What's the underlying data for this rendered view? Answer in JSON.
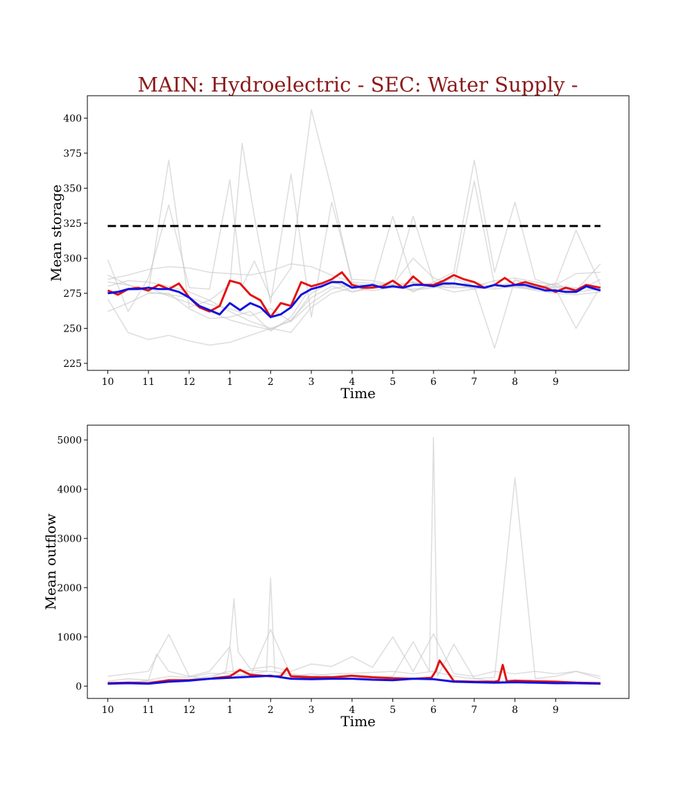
{
  "figure": {
    "title": "MAIN: Hydroelectric - SEC: Water Supply -",
    "colors": {
      "title": "#8b1a1a",
      "red": "#e41010",
      "blue": "#1010e0",
      "grey": "#c8c8c8",
      "threshold": "#000000"
    }
  },
  "chart_data": [
    {
      "type": "line",
      "title": "",
      "xlabel": "Time",
      "ylabel": "Mean storage",
      "xlim": [
        -0.5,
        12.8
      ],
      "ylim": [
        220,
        416
      ],
      "x_tick_values": [
        0,
        1,
        2,
        3,
        4,
        5,
        6,
        7,
        8,
        9,
        10,
        11
      ],
      "x_tick_labels": [
        "10",
        "11",
        "12",
        "1",
        "2",
        "3",
        "4",
        "5",
        "6",
        "7",
        "8",
        "9"
      ],
      "y_ticks": [
        225,
        250,
        275,
        300,
        325,
        350,
        375,
        400
      ],
      "grid": false,
      "threshold": {
        "value": 323,
        "style": "dashed",
        "color": "#000000"
      },
      "series": [
        {
          "color": "#e41010",
          "x": [
            0.0,
            0.25,
            0.5,
            0.75,
            1.0,
            1.25,
            1.5,
            1.75,
            2.0,
            2.25,
            2.5,
            2.75,
            3.0,
            3.25,
            3.5,
            3.75,
            4.0,
            4.25,
            4.5,
            4.75,
            5.0,
            5.25,
            5.5,
            5.75,
            6.0,
            6.25,
            6.5,
            6.75,
            7.0,
            7.25,
            7.5,
            7.75,
            8.0,
            8.25,
            8.5,
            8.75,
            9.0,
            9.25,
            9.5,
            9.75,
            10.0,
            10.25,
            10.5,
            10.75,
            11.0,
            11.25,
            11.5,
            11.75,
            12.1
          ],
          "values": [
            277,
            274,
            278,
            279,
            277,
            281,
            278,
            282,
            272,
            265,
            262,
            266,
            284,
            282,
            274,
            270,
            258,
            268,
            266,
            283,
            280,
            282,
            285,
            290,
            281,
            279,
            279,
            280,
            284,
            279,
            287,
            281,
            281,
            284,
            288,
            285,
            283,
            279,
            281,
            286,
            281,
            283,
            281,
            279,
            276,
            279,
            277,
            281,
            279
          ]
        },
        {
          "color": "#1010e0",
          "x": [
            0.0,
            0.25,
            0.5,
            0.75,
            1.0,
            1.25,
            1.5,
            1.75,
            2.0,
            2.25,
            2.5,
            2.75,
            3.0,
            3.25,
            3.5,
            3.75,
            4.0,
            4.25,
            4.5,
            4.75,
            5.0,
            5.25,
            5.5,
            5.75,
            6.0,
            6.25,
            6.5,
            6.75,
            7.0,
            7.25,
            7.5,
            7.75,
            8.0,
            8.25,
            8.5,
            8.75,
            9.0,
            9.25,
            9.5,
            9.75,
            10.0,
            10.25,
            10.5,
            10.75,
            11.0,
            11.25,
            11.5,
            11.75,
            12.1
          ],
          "values": [
            275,
            276,
            278,
            278,
            279,
            278,
            278,
            276,
            272,
            266,
            263,
            260,
            268,
            263,
            268,
            265,
            258,
            260,
            265,
            274,
            278,
            280,
            283,
            283,
            279,
            280,
            281,
            279,
            280,
            279,
            281,
            281,
            280,
            282,
            282,
            281,
            280,
            279,
            281,
            280,
            281,
            281,
            279,
            277,
            277,
            276,
            276,
            280,
            277
          ]
        },
        {
          "color": "#c8c8c8",
          "x": [
            0,
            0.5,
            1,
            1.5,
            2,
            2.5,
            3,
            3.3,
            3.6,
            4,
            4.5,
            5,
            5.5,
            6,
            6.5,
            7,
            7.5,
            8,
            8.5,
            9,
            9.5,
            10,
            10.5,
            11,
            11.5,
            12.1
          ],
          "values": [
            299,
            262,
            286,
            338,
            279,
            278,
            356,
            280,
            298,
            272,
            293,
            406,
            349,
            282,
            280,
            280,
            330,
            283,
            290,
            370,
            290,
            340,
            285,
            280,
            277,
            296
          ]
        },
        {
          "color": "#c8c8c8",
          "x": [
            0,
            0.5,
            1,
            1.5,
            2,
            2.5,
            3,
            3.3,
            3.6,
            4,
            4.5,
            5,
            5.5,
            6,
            6.5,
            7,
            7.5,
            8,
            8.5,
            9,
            9.5,
            10,
            10.5,
            11,
            11.5,
            12.1
          ],
          "values": [
            283,
            281,
            277,
            370,
            265,
            270,
            281,
            382,
            330,
            268,
            360,
            258,
            340,
            285,
            284,
            281,
            300,
            286,
            281,
            355,
            281,
            281,
            278,
            282,
            320,
            281
          ]
        },
        {
          "color": "#c8c8c8",
          "x": [
            0,
            0.5,
            1,
            1.5,
            2,
            2.5,
            3,
            3.5,
            4,
            4.5,
            5,
            5.5,
            6,
            6.5,
            7,
            7.5,
            8,
            8.5,
            9,
            9.5,
            10,
            10.5,
            11,
            11.5,
            12.1
          ],
          "values": [
            271,
            247,
            242,
            245,
            241,
            238,
            240,
            245,
            250,
            255,
            275,
            283,
            279,
            279,
            330,
            282,
            281,
            286,
            280,
            236,
            285,
            280,
            278,
            250,
            280
          ]
        },
        {
          "color": "#c8c8c8",
          "x": [
            0,
            0.5,
            1,
            1.5,
            2,
            2.5,
            3,
            3.5,
            4,
            4.5,
            5,
            5.5,
            6,
            6.5,
            7,
            7.5,
            8,
            8.5,
            9,
            9.5,
            10,
            10.5,
            11,
            11.5,
            12.1
          ],
          "values": [
            262,
            268,
            275,
            275,
            264,
            257,
            258,
            262,
            248,
            258,
            280,
            285,
            276,
            279,
            284,
            276,
            283,
            280,
            283,
            279,
            284,
            281,
            279,
            276,
            278
          ]
        },
        {
          "color": "#c8c8c8",
          "x": [
            0,
            0.5,
            1,
            1.5,
            2,
            2.5,
            3,
            3.5,
            4,
            4.5,
            5,
            5.5,
            6,
            6.5,
            7,
            7.5,
            8,
            8.5,
            9,
            9.5,
            10,
            10.5,
            11,
            11.5,
            12.1
          ],
          "values": [
            285,
            288,
            292,
            294,
            293,
            290,
            289,
            288,
            291,
            296,
            294,
            288,
            283,
            282,
            281,
            283,
            280,
            279,
            280,
            284,
            286,
            283,
            281,
            289,
            290
          ]
        },
        {
          "color": "#c8c8c8",
          "x": [
            0,
            0.5,
            1,
            1.5,
            2,
            2.5,
            3,
            3.5,
            4,
            4.5,
            5,
            5.5,
            6,
            6.5,
            7,
            7.5,
            8,
            8.5,
            9,
            9.5,
            10,
            10.5,
            11,
            11.5,
            12.1
          ],
          "values": [
            280,
            284,
            283,
            280,
            276,
            270,
            262,
            255,
            250,
            247,
            265,
            275,
            279,
            277,
            279,
            278,
            280,
            276,
            278,
            281,
            280,
            277,
            275,
            274,
            276
          ]
        },
        {
          "color": "#c8c8c8",
          "x": [
            0,
            0.5,
            1,
            1.5,
            2,
            2.5,
            3,
            3.5,
            4,
            4.5,
            5,
            5.5,
            6,
            6.5,
            7,
            7.5,
            8,
            8.5,
            9,
            9.5,
            10,
            10.5,
            11,
            11.5,
            12.1
          ],
          "values": [
            276,
            277,
            279,
            273,
            268,
            262,
            256,
            252,
            249,
            256,
            272,
            280,
            276,
            279,
            281,
            277,
            279,
            282,
            278,
            281,
            279,
            278,
            280,
            279,
            277
          ]
        },
        {
          "color": "#c8c8c8",
          "x": [
            0,
            0.5,
            1,
            1.5,
            2,
            2.5,
            3,
            3.5,
            4,
            4.5,
            5,
            5.5,
            6,
            6.5,
            7,
            7.5,
            8,
            8.5,
            9,
            9.5,
            10,
            10.5,
            11,
            11.5,
            12.1
          ],
          "values": [
            288,
            281,
            276,
            274,
            272,
            267,
            264,
            259,
            264,
            255,
            268,
            278,
            281,
            280,
            279,
            283,
            280,
            279,
            279,
            278,
            280,
            279,
            282,
            276,
            285
          ]
        }
      ]
    },
    {
      "type": "line",
      "title": "",
      "xlabel": "Time",
      "ylabel": "Mean outflow",
      "xlim": [
        -0.5,
        12.8
      ],
      "ylim": [
        -250,
        5300
      ],
      "x_tick_values": [
        0,
        1,
        2,
        3,
        4,
        5,
        6,
        7,
        8,
        9,
        10,
        11
      ],
      "x_tick_labels": [
        "10",
        "11",
        "12",
        "1",
        "2",
        "3",
        "4",
        "5",
        "6",
        "7",
        "8",
        "9"
      ],
      "y_ticks": [
        0,
        1000,
        2000,
        3000,
        4000,
        5000
      ],
      "grid": false,
      "series": [
        {
          "color": "#e41010",
          "x": [
            0.0,
            0.5,
            1.0,
            1.5,
            2.0,
            2.5,
            3.0,
            3.25,
            3.5,
            4.0,
            4.25,
            4.4,
            4.5,
            5.0,
            5.5,
            6.0,
            6.5,
            7.0,
            7.5,
            7.95,
            8.05,
            8.15,
            8.5,
            9.0,
            9.5,
            9.6,
            9.7,
            9.8,
            10.0,
            10.5,
            11.0,
            11.5,
            12.1
          ],
          "values": [
            60,
            70,
            60,
            120,
            120,
            150,
            200,
            330,
            230,
            200,
            200,
            360,
            200,
            180,
            180,
            210,
            180,
            160,
            150,
            170,
            300,
            520,
            100,
            90,
            90,
            110,
            430,
            100,
            110,
            100,
            90,
            70,
            60
          ]
        },
        {
          "color": "#1010e0",
          "x": [
            0.0,
            0.5,
            1.0,
            1.5,
            2.0,
            2.5,
            3.0,
            3.5,
            4.0,
            4.5,
            5.0,
            5.5,
            6.0,
            6.5,
            7.0,
            7.5,
            8.0,
            8.5,
            9.0,
            9.5,
            10.0,
            10.5,
            11.0,
            11.5,
            12.1
          ],
          "values": [
            50,
            60,
            50,
            90,
            110,
            150,
            170,
            190,
            210,
            150,
            140,
            150,
            150,
            130,
            120,
            150,
            140,
            90,
            80,
            70,
            80,
            70,
            60,
            60,
            50
          ]
        },
        {
          "color": "#c8c8c8",
          "x": [
            0,
            0.5,
            1,
            1.2,
            1.5,
            2,
            2.5,
            2.9,
            3.0,
            3.1,
            3.5,
            3.9,
            4.0,
            4.1,
            4.5,
            5,
            5.5,
            6,
            6.5,
            7,
            7.5,
            7.9,
            8.0,
            8.1,
            8.5,
            9,
            9.5,
            10,
            10.5,
            11,
            11.5,
            12.1
          ],
          "values": [
            100,
            150,
            120,
            650,
            300,
            200,
            150,
            300,
            800,
            200,
            250,
            300,
            2200,
            300,
            200,
            250,
            200,
            150,
            180,
            200,
            900,
            300,
            5050,
            200,
            850,
            150,
            180,
            4230,
            150,
            200,
            300,
            150
          ]
        },
        {
          "color": "#c8c8c8",
          "x": [
            0,
            0.5,
            1,
            1.5,
            2,
            2.5,
            3,
            3.1,
            3.2,
            3.5,
            4,
            4.5,
            5,
            5.5,
            6,
            6.5,
            7,
            7.5,
            8,
            8.5,
            9,
            9.5,
            10,
            10.5,
            11,
            11.5,
            12.1
          ],
          "values": [
            200,
            250,
            300,
            1050,
            200,
            300,
            800,
            1770,
            700,
            350,
            400,
            300,
            450,
            400,
            600,
            380,
            1000,
            300,
            1060,
            250,
            200,
            300,
            250,
            300,
            250,
            300,
            200
          ]
        },
        {
          "color": "#c8c8c8",
          "x": [
            0,
            0.5,
            1,
            1.5,
            2,
            2.5,
            3,
            3.5,
            4,
            4.5,
            5,
            5.5,
            6,
            6.5,
            7,
            7.5,
            8,
            8.5,
            9,
            9.5,
            10,
            10.5,
            11,
            11.5,
            12.1
          ],
          "values": [
            30,
            80,
            100,
            90,
            140,
            200,
            300,
            320,
            300,
            250,
            200,
            180,
            220,
            200,
            180,
            150,
            140,
            120,
            100,
            90,
            80,
            70,
            60,
            50,
            40
          ]
        },
        {
          "color": "#c8c8c8",
          "x": [
            0,
            0.5,
            1,
            1.5,
            2,
            2.5,
            3,
            3.5,
            4,
            4.5,
            5,
            5.5,
            6,
            6.5,
            7,
            7.5,
            8,
            8.5,
            9,
            9.5,
            10,
            10.5,
            11,
            11.5,
            12.1
          ],
          "values": [
            80,
            60,
            120,
            200,
            180,
            260,
            250,
            200,
            1150,
            220,
            200,
            250,
            260,
            280,
            300,
            250,
            300,
            200,
            150,
            100,
            120,
            100,
            90,
            80,
            70
          ]
        }
      ]
    }
  ]
}
